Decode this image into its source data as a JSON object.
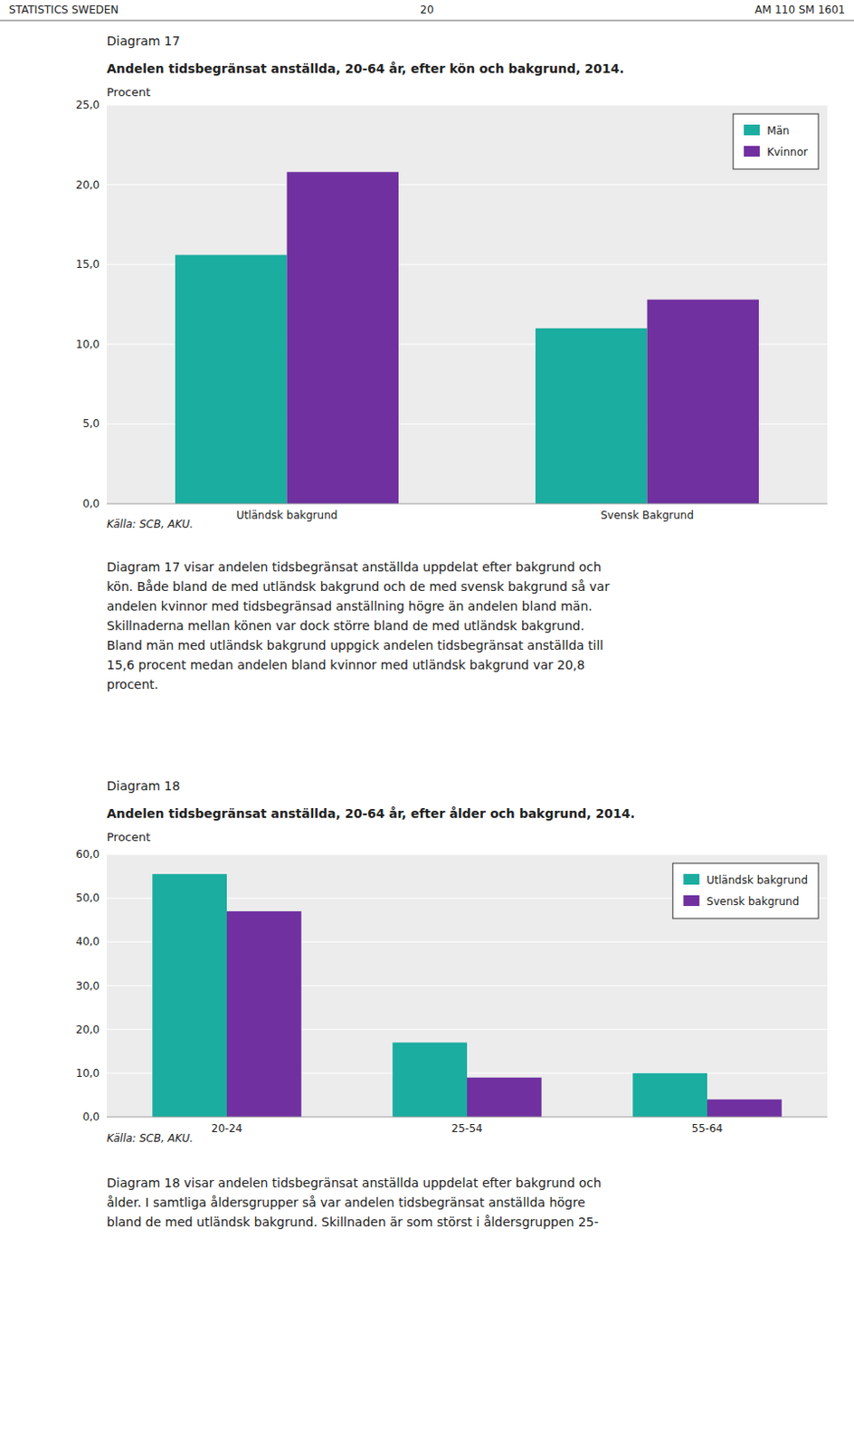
{
  "header": {
    "left": "STATISTICS SWEDEN",
    "center": "20",
    "right": "AM 110 SM 1601"
  },
  "chart_data": [
    {
      "type": "bar",
      "subtitle": "Diagram 17",
      "title": "Andelen tidsbegränsat anställda, 20-64 år, efter kön och bakgrund, 2014.",
      "ylabel": "Procent",
      "categories": [
        "Utländsk bakgrund",
        "Svensk Bakgrund"
      ],
      "series": [
        {
          "name": "Män",
          "color": "#1AADA0",
          "values": [
            15.6,
            11.0
          ]
        },
        {
          "name": "Kvinnor",
          "color": "#7030A0",
          "values": [
            20.8,
            12.8
          ]
        }
      ],
      "ylim": [
        0,
        25
      ],
      "yticks": [
        {
          "value": 0,
          "label": "0,0"
        },
        {
          "value": 5,
          "label": "5,0"
        },
        {
          "value": 10,
          "label": "10,0"
        },
        {
          "value": 15,
          "label": "15,0"
        },
        {
          "value": 20,
          "label": "20,0"
        },
        {
          "value": 25,
          "label": "25,0"
        }
      ],
      "grid": true,
      "legend": "top-right",
      "annotations": [
        "Källa: SCB, AKU."
      ]
    },
    {
      "type": "bar",
      "subtitle": "Diagram 18",
      "title": "Andelen tidsbegränsat anställda, 20-64 år, efter ålder och bakgrund, 2014.",
      "ylabel": "Procent",
      "categories": [
        "20-24",
        "25-54",
        "55-64"
      ],
      "series": [
        {
          "name": "Utländsk bakgrund",
          "color": "#1AADA0",
          "values": [
            55.5,
            17.0,
            10.0
          ]
        },
        {
          "name": "Svensk bakgrund",
          "color": "#7030A0",
          "values": [
            47.0,
            9.0,
            4.0
          ]
        }
      ],
      "ylim": [
        0,
        60
      ],
      "yticks": [
        {
          "value": 0,
          "label": "0,0"
        },
        {
          "value": 10,
          "label": "10,0"
        },
        {
          "value": 20,
          "label": "20,0"
        },
        {
          "value": 30,
          "label": "30,0"
        },
        {
          "value": 40,
          "label": "40,0"
        },
        {
          "value": 50,
          "label": "50,0"
        },
        {
          "value": 60,
          "label": "60,0"
        }
      ],
      "grid": true,
      "legend": "top-right",
      "annotations": [
        "Källa: SCB, AKU."
      ]
    }
  ],
  "paragraphs": [
    [
      "Diagram 17 visar andelen tidsbegränsat anställda uppdelat efter bakgrund och",
      "kön. Både bland de med utländsk bakgrund och de med svensk bakgrund så var",
      "andelen kvinnor med tidsbegränsad anställning högre än andelen bland män.",
      "Skillnaderna mellan könen var dock större bland de med utländsk bakgrund.",
      "Bland män med utländsk bakgrund uppgick andelen tidsbegränsat anställda till",
      "15,6 procent medan andelen bland kvinnor med utländsk bakgrund var 20,8",
      "procent."
    ],
    [
      "Diagram 18 visar andelen tidsbegränsat anställda uppdelat efter bakgrund och",
      "ålder. I samtliga åldersgrupper så var andelen tidsbegränsat anställda högre",
      "bland de med utländsk bakgrund. Skillnaden är som störst i åldersgruppen 25-"
    ]
  ]
}
